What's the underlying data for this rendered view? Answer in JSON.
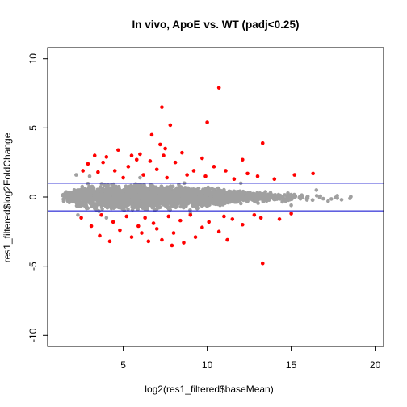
{
  "chart_data": {
    "type": "scatter",
    "title": "In vivo, ApoE vs. WT (padj<0.25)",
    "xlabel": "log2(res1_filtered$baseMean)",
    "ylabel": "res1_filtered$log2FoldChange",
    "xlim": [
      0.5,
      20.5
    ],
    "ylim": [
      -10.8,
      10.8
    ],
    "x_ticks": [
      5,
      10,
      15,
      20
    ],
    "y_ticks": [
      10,
      5,
      0,
      -5,
      -10
    ],
    "grid": false,
    "legend": "none",
    "reference_lines": [
      {
        "y": 1,
        "color": "#0000cd"
      },
      {
        "y": -1,
        "color": "#0000cd"
      }
    ],
    "colors": {
      "not_significant": "#a0a0a0",
      "significant": "#ff0000",
      "reference_line": "#0000cd",
      "axis": "#000000"
    },
    "series": [
      {
        "role": "not_significant",
        "color": "#a0a0a0",
        "description": "dense cloud of several thousand genes",
        "density_profile": [
          {
            "x": 1.5,
            "y_spread": 0.4
          },
          {
            "x": 2.5,
            "y_spread": 0.8
          },
          {
            "x": 4,
            "y_spread": 0.85
          },
          {
            "x": 6,
            "y_spread": 0.8
          },
          {
            "x": 8,
            "y_spread": 0.7
          },
          {
            "x": 10,
            "y_spread": 0.6
          },
          {
            "x": 12,
            "y_spread": 0.45
          },
          {
            "x": 14,
            "y_spread": 0.35
          },
          {
            "x": 16,
            "y_spread": 0.25
          },
          {
            "x": 18.5,
            "y_spread": 0.15
          }
        ],
        "sample_points": [
          {
            "x": 1.5,
            "y": 0.0
          },
          {
            "x": 2.2,
            "y": 1.6
          },
          {
            "x": 2.3,
            "y": -1.3
          },
          {
            "x": 3.0,
            "y": 1.5
          },
          {
            "x": 4.0,
            "y": -1.5
          },
          {
            "x": 6.0,
            "y": 1.4
          },
          {
            "x": 9.0,
            "y": -1.2
          },
          {
            "x": 12.0,
            "y": 1.0
          },
          {
            "x": 15.0,
            "y": -0.6
          },
          {
            "x": 16.5,
            "y": 0.5
          },
          {
            "x": 17.2,
            "y": -0.3
          },
          {
            "x": 18.0,
            "y": -0.2
          },
          {
            "x": 18.5,
            "y": -0.1
          }
        ]
      },
      {
        "role": "significant",
        "color": "#ff0000",
        "description": "significant genes (padj<0.25)",
        "points": [
          {
            "x": 10.7,
            "y": 7.9
          },
          {
            "x": 7.3,
            "y": 6.5
          },
          {
            "x": 10.0,
            "y": 5.4
          },
          {
            "x": 7.8,
            "y": 5.2
          },
          {
            "x": 13.3,
            "y": -4.8
          },
          {
            "x": 6.7,
            "y": 4.5
          },
          {
            "x": 7.2,
            "y": 3.8
          },
          {
            "x": 13.3,
            "y": 3.9
          },
          {
            "x": 7.5,
            "y": 3.5
          },
          {
            "x": 5.5,
            "y": 3.0
          },
          {
            "x": 4.7,
            "y": 3.4
          },
          {
            "x": 6.0,
            "y": 3.1
          },
          {
            "x": 8.5,
            "y": 3.2
          },
          {
            "x": 7.4,
            "y": 3.0
          },
          {
            "x": 3.3,
            "y": 3.0
          },
          {
            "x": 9.7,
            "y": 2.8
          },
          {
            "x": 12.1,
            "y": 2.7
          },
          {
            "x": 5.8,
            "y": 2.7
          },
          {
            "x": 4.0,
            "y": 2.9
          },
          {
            "x": 3.8,
            "y": 2.5
          },
          {
            "x": 6.6,
            "y": 2.6
          },
          {
            "x": 8.1,
            "y": 2.5
          },
          {
            "x": 2.9,
            "y": 2.4
          },
          {
            "x": 5.3,
            "y": 2.2
          },
          {
            "x": 10.4,
            "y": 2.2
          },
          {
            "x": 4.5,
            "y": 1.9
          },
          {
            "x": 7.0,
            "y": 2.0
          },
          {
            "x": 9.2,
            "y": 1.9
          },
          {
            "x": 11.1,
            "y": 1.9
          },
          {
            "x": 3.5,
            "y": 1.8
          },
          {
            "x": 6.2,
            "y": 1.6
          },
          {
            "x": 8.8,
            "y": 1.6
          },
          {
            "x": 12.4,
            "y": 1.7
          },
          {
            "x": 13.0,
            "y": 1.5
          },
          {
            "x": 15.2,
            "y": 1.6
          },
          {
            "x": 16.3,
            "y": 1.7
          },
          {
            "x": 14.0,
            "y": 1.3
          },
          {
            "x": 2.6,
            "y": 1.9
          },
          {
            "x": 11.6,
            "y": 1.3
          },
          {
            "x": 5.0,
            "y": 1.4
          },
          {
            "x": 7.6,
            "y": 1.4
          },
          {
            "x": 9.9,
            "y": 1.5
          },
          {
            "x": 6.5,
            "y": -3.2
          },
          {
            "x": 4.2,
            "y": -3.2
          },
          {
            "x": 7.3,
            "y": -3.1
          },
          {
            "x": 7.9,
            "y": -3.5
          },
          {
            "x": 8.6,
            "y": -3.3
          },
          {
            "x": 11.2,
            "y": -3.1
          },
          {
            "x": 5.5,
            "y": -2.9
          },
          {
            "x": 3.6,
            "y": -2.8
          },
          {
            "x": 9.3,
            "y": -2.9
          },
          {
            "x": 6.1,
            "y": -2.6
          },
          {
            "x": 8.0,
            "y": -2.6
          },
          {
            "x": 10.7,
            "y": -2.5
          },
          {
            "x": 4.8,
            "y": -2.4
          },
          {
            "x": 7.0,
            "y": -2.3
          },
          {
            "x": 5.9,
            "y": -2.1
          },
          {
            "x": 9.7,
            "y": -2.2
          },
          {
            "x": 12.1,
            "y": -2.0
          },
          {
            "x": 3.1,
            "y": -2.1
          },
          {
            "x": 4.4,
            "y": -1.8
          },
          {
            "x": 6.8,
            "y": -1.9
          },
          {
            "x": 8.4,
            "y": -1.7
          },
          {
            "x": 10.1,
            "y": -1.8
          },
          {
            "x": 11.5,
            "y": -1.6
          },
          {
            "x": 13.2,
            "y": -1.5
          },
          {
            "x": 14.3,
            "y": -1.6
          },
          {
            "x": 2.5,
            "y": -1.5
          },
          {
            "x": 5.2,
            "y": -1.4
          },
          {
            "x": 7.7,
            "y": -1.4
          },
          {
            "x": 9.0,
            "y": -1.3
          },
          {
            "x": 12.8,
            "y": -1.3
          },
          {
            "x": 15.0,
            "y": -1.2
          },
          {
            "x": 3.7,
            "y": -1.3
          },
          {
            "x": 6.3,
            "y": -1.5
          },
          {
            "x": 11.0,
            "y": -1.4
          }
        ]
      }
    ]
  }
}
